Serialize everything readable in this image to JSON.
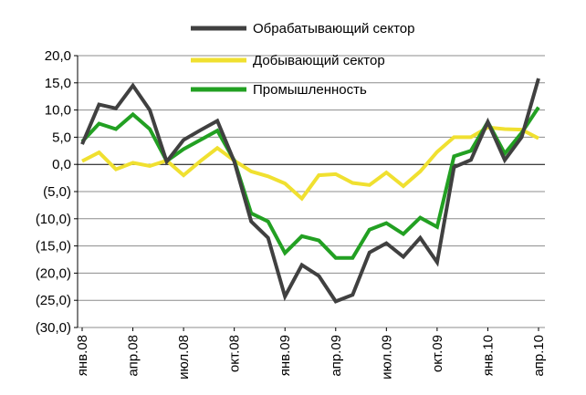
{
  "chart_data": {
    "type": "line",
    "title": "",
    "xlabel": "",
    "ylabel": "",
    "ylim": [
      -30,
      20
    ],
    "yticks": [
      20,
      15,
      10,
      5,
      0,
      -5,
      -10,
      -15,
      -20,
      -25,
      -30
    ],
    "ytick_labels": [
      "20,0",
      "15,0",
      "10,0",
      "5,0",
      "0,0",
      "(5,0)",
      "(10,0)",
      "(15,0)",
      "(20,0)",
      "(25,0)",
      "(30,0)"
    ],
    "grid": "horizontal",
    "legend_position": "top",
    "x": [
      "янв.08",
      "фев.08",
      "мар.08",
      "апр.08",
      "май.08",
      "июн.08",
      "июл.08",
      "авг.08",
      "сен.08",
      "окт.08",
      "ноя.08",
      "дек.08",
      "янв.09",
      "фев.09",
      "мар.09",
      "апр.09",
      "май.09",
      "июн.09",
      "июл.09",
      "авг.09",
      "сен.09",
      "окт.09",
      "ноя.09",
      "дек.09",
      "янв.10",
      "фев.10",
      "мар.10",
      "апр.10"
    ],
    "xtick_labels": [
      {
        "index": 0,
        "label": "янв.08"
      },
      {
        "index": 3,
        "label": "апр.08"
      },
      {
        "index": 6,
        "label": "июл.08"
      },
      {
        "index": 9,
        "label": "окт.08"
      },
      {
        "index": 12,
        "label": "янв.09"
      },
      {
        "index": 15,
        "label": "апр.09"
      },
      {
        "index": 18,
        "label": "июл.09"
      },
      {
        "index": 21,
        "label": "окт.09"
      },
      {
        "index": 24,
        "label": "янв.10"
      },
      {
        "index": 27,
        "label": "апр.10"
      }
    ],
    "series": [
      {
        "name": "Обрабатывающий сектор",
        "color": "#404040",
        "values": [
          3.7,
          11.0,
          10.3,
          14.5,
          10.0,
          0.5,
          4.5,
          6.3,
          8.0,
          0.5,
          -10.5,
          -13.5,
          -24.3,
          -18.5,
          -20.5,
          -25.2,
          -24.0,
          -16.2,
          -14.5,
          -17.0,
          -13.5,
          -18.0,
          -0.5,
          0.8,
          7.8,
          0.8,
          5.0,
          15.8
        ]
      },
      {
        "name": "Добывающий сектор",
        "color": "#f0e030",
        "values": [
          0.6,
          2.2,
          -0.9,
          0.3,
          -0.3,
          0.7,
          -2.0,
          0.6,
          3.0,
          0.7,
          -1.3,
          -2.2,
          -3.5,
          -6.3,
          -2.0,
          -1.8,
          -3.4,
          -3.8,
          -1.5,
          -4.0,
          -1.3,
          2.3,
          5.0,
          5.0,
          6.8,
          6.5,
          6.4,
          4.8
        ]
      },
      {
        "name": "Промышленность",
        "color": "#22a022",
        "values": [
          4.2,
          7.5,
          6.5,
          9.2,
          6.5,
          0.6,
          2.8,
          4.5,
          6.2,
          0.7,
          -9.0,
          -10.5,
          -16.3,
          -13.2,
          -14.0,
          -17.2,
          -17.2,
          -12.0,
          -10.8,
          -12.8,
          -9.8,
          -11.5,
          1.5,
          2.5,
          7.8,
          2.0,
          5.8,
          10.5
        ]
      }
    ]
  }
}
